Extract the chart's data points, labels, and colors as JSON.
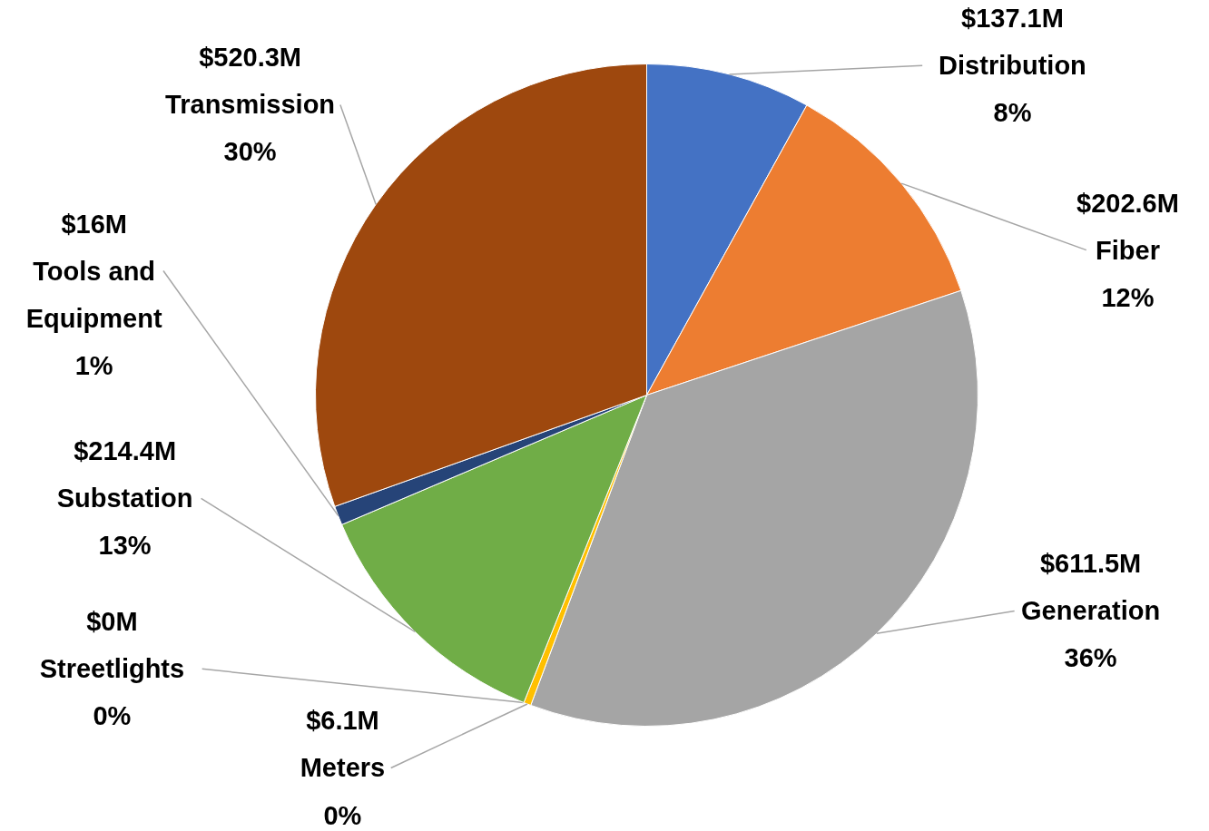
{
  "chart_data": {
    "type": "pie",
    "categories": [
      "Distribution",
      "Fiber",
      "Generation",
      "Meters",
      "Streetlights",
      "Substation",
      "Tools and Equipment",
      "Transmission"
    ],
    "values": [
      137.1,
      202.6,
      611.5,
      6.1,
      0,
      214.4,
      16,
      520.3
    ],
    "colors": [
      "#4472c4",
      "#ed7d31",
      "#a5a5a5",
      "#ffc000",
      "#5b9bd5",
      "#70ad47",
      "#264478",
      "#9e480e"
    ],
    "value_labels": [
      "$137.1M",
      "$202.6M",
      "$611.5M",
      "$6.1M",
      "$0M",
      "$214.4M",
      "$16M",
      "$520.3M"
    ],
    "annotations": [
      "8%",
      "12%",
      "36%",
      "0%",
      "0%",
      "13%",
      "1%",
      "30%"
    ]
  }
}
